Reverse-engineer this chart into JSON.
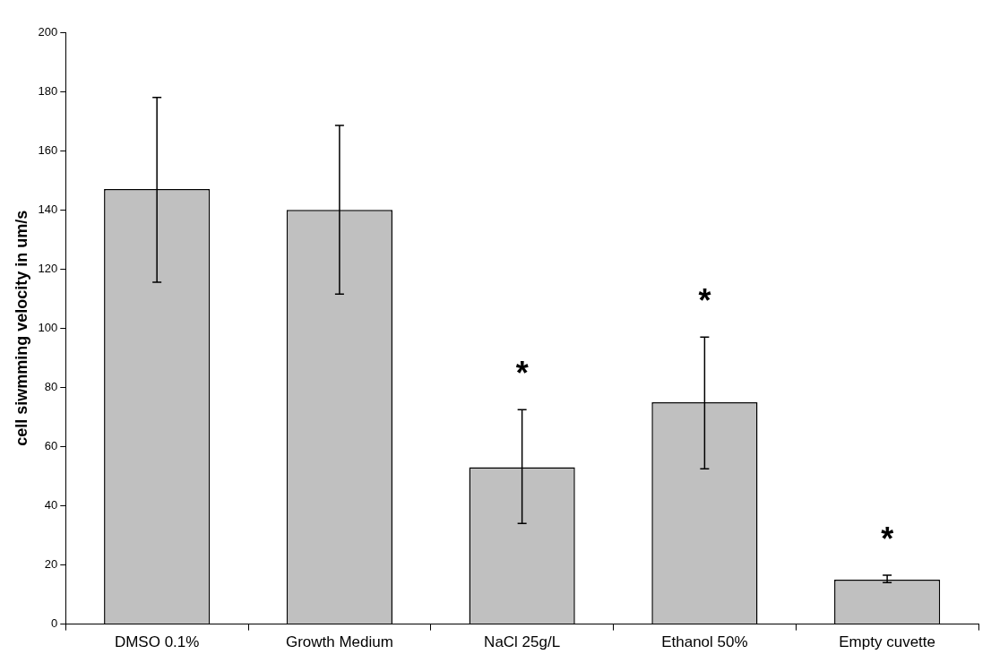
{
  "chart_data": {
    "type": "bar",
    "ylabel": "cell siwmming velocity in um/s",
    "categories": [
      "DMSO 0.1%",
      "Growth Medium",
      "NaCl 25g/L",
      "Ethanol 50%",
      "Empty cuvette"
    ],
    "values": [
      147,
      140,
      53,
      75,
      15
    ],
    "errors": [
      [
        115.5,
        178
      ],
      [
        111.5,
        168.5
      ],
      [
        34,
        72.5
      ],
      [
        52.5,
        97
      ],
      [
        14,
        16.5
      ]
    ],
    "color": "#c0c0c0",
    "ylim": [
      0,
      200
    ],
    "yticks": [
      0,
      20,
      40,
      60,
      80,
      100,
      120,
      140,
      160,
      180,
      200
    ],
    "grid": false,
    "legend": false,
    "annotations": [
      {
        "text": "*",
        "x": "NaCl 25g/L",
        "y": 72.5
      },
      {
        "text": "*",
        "x": "Ethanol 50%",
        "y": 97
      },
      {
        "text": "*",
        "x": "Empty cuvette",
        "y": 16.5
      }
    ]
  }
}
